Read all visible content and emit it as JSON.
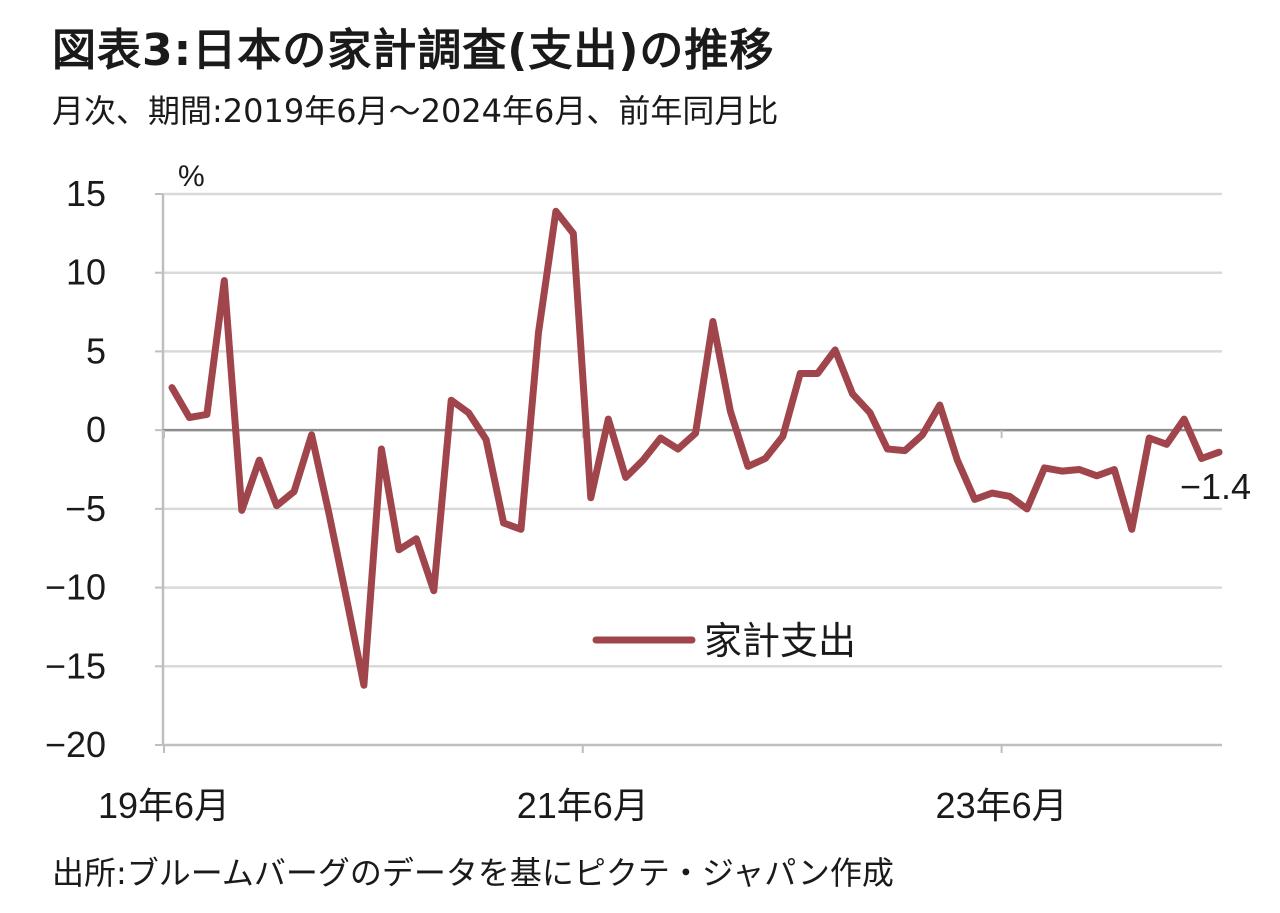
{
  "header": {
    "title": "図表3:日本の家計調査(支出)の推移",
    "subtitle": "月次、期間:2019年6月～2024年6月、前年同月比"
  },
  "footer": {
    "source": "出所:ブルームバーグのデータを基にピクテ・ジャパン作成"
  },
  "chart_data": {
    "type": "line",
    "unit_label": "%",
    "ylim": [
      -20,
      15
    ],
    "yticks": [
      15,
      10,
      5,
      0,
      -5,
      -10,
      -15,
      -20
    ],
    "xtick_labels": [
      {
        "label": "19年6月",
        "index": 0
      },
      {
        "label": "21年6月",
        "index": 24
      },
      {
        "label": "23年6月",
        "index": 48
      }
    ],
    "grid": true,
    "legend_position": "lower-center",
    "end_label": "-1.4",
    "series": [
      {
        "name": "家計支出",
        "color": "#a0454b",
        "values": [
          2.7,
          0.8,
          1.0,
          9.5,
          -5.1,
          -1.9,
          -4.8,
          -3.9,
          -0.3,
          -5.3,
          -10.7,
          -16.2,
          -1.2,
          -7.6,
          -6.9,
          -10.2,
          1.9,
          1.1,
          -0.6,
          -5.9,
          -6.3,
          6.2,
          13.9,
          12.5,
          -4.3,
          0.7,
          -3.0,
          -1.9,
          -0.5,
          -1.2,
          -0.2,
          6.9,
          1.2,
          -2.3,
          -1.8,
          -0.4,
          3.6,
          3.6,
          5.1,
          2.3,
          1.1,
          -1.2,
          -1.3,
          -0.3,
          1.6,
          -1.9,
          -4.4,
          -4.0,
          -4.2,
          -5.0,
          -2.4,
          -2.6,
          -2.5,
          -2.9,
          -2.5,
          -6.3,
          -0.5,
          -0.9,
          0.7,
          -1.8,
          -1.4
        ]
      }
    ]
  }
}
